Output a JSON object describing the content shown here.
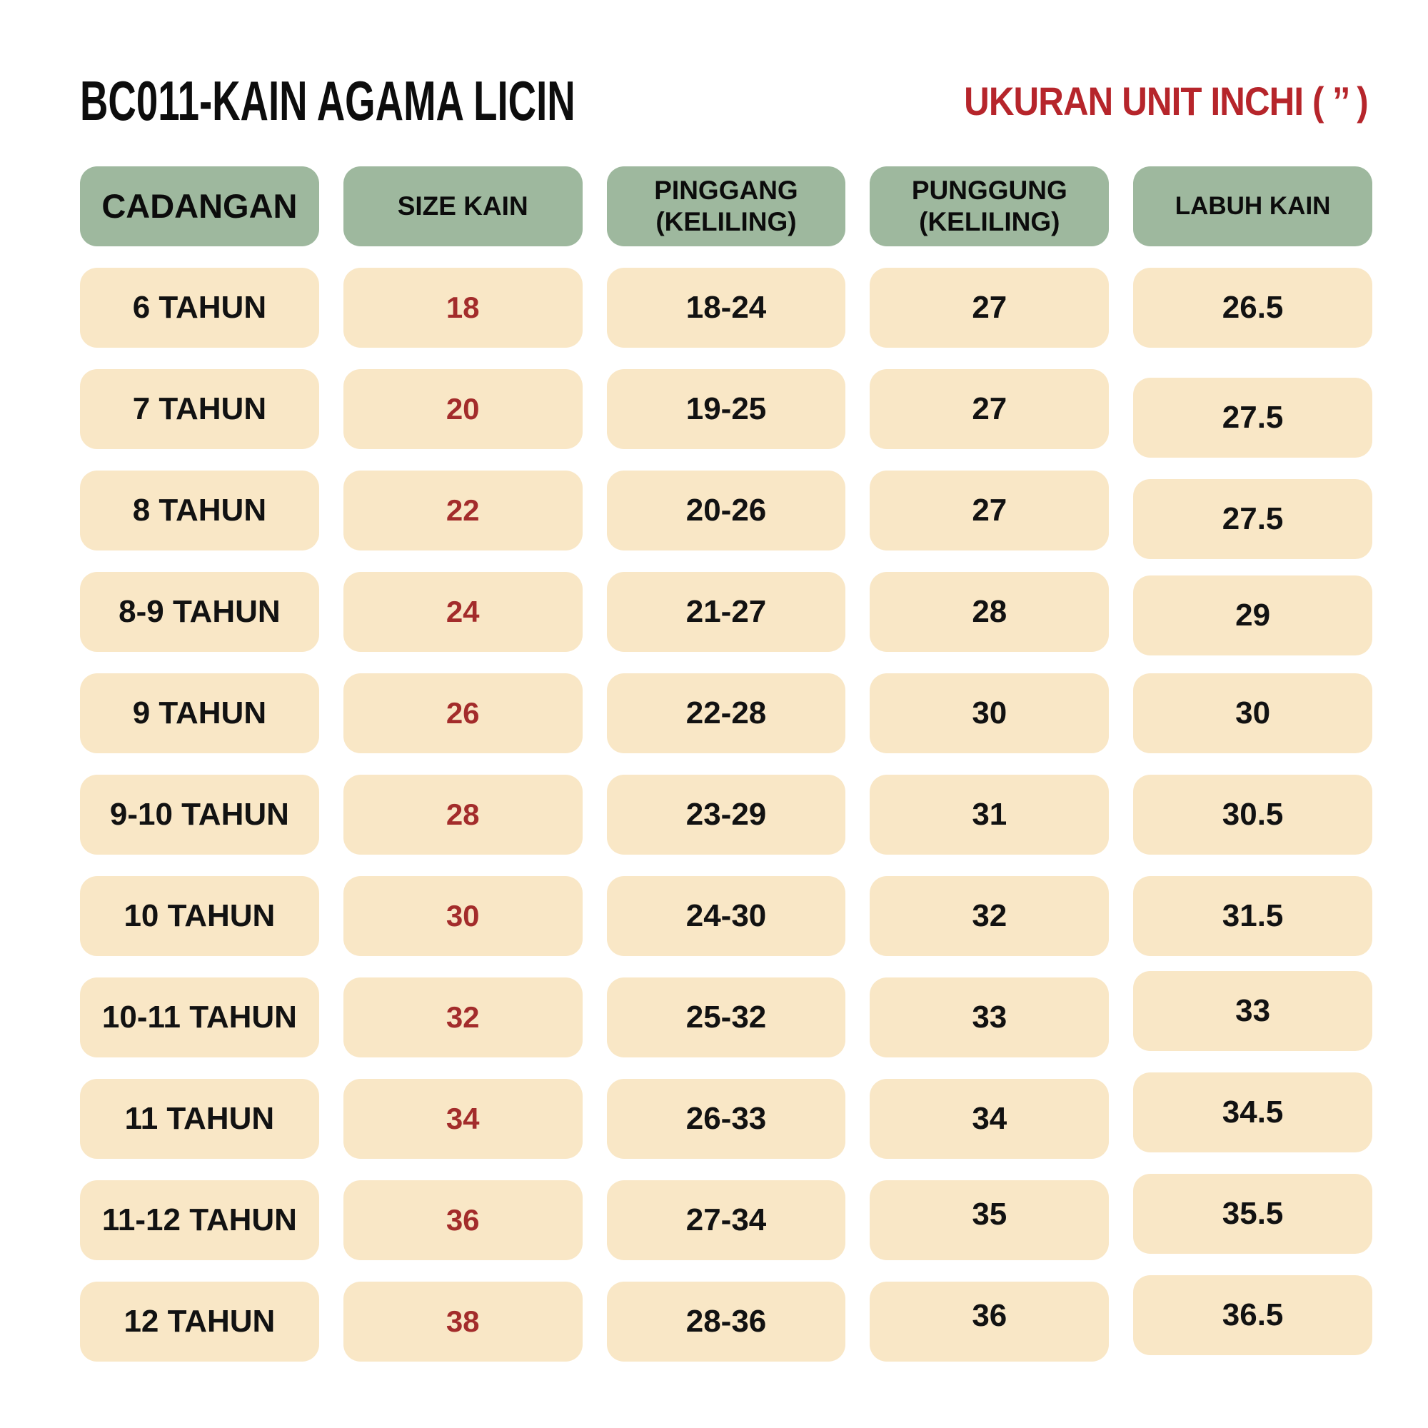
{
  "page": {
    "title": "BC011-KAIN AGAMA LICIN",
    "unit_label": "UKURAN UNIT INCHI ( ’’ )"
  },
  "colors": {
    "header_bg": "#9EB89E",
    "cell_bg": "#F9E7C6",
    "size_value_text": "#A32C2B",
    "unit_label_text": "#B6252B",
    "body_text": "#121212"
  },
  "table": {
    "headers": [
      "CADANGAN",
      "SIZE KAIN",
      "PINGGANG\n(KELILING)",
      "PUNGGUNG\n(KELILING)",
      "LABUH KAIN"
    ],
    "rows": [
      {
        "cadangan": "6 TAHUN",
        "size_kain": "18",
        "pinggang": "18-24",
        "punggung": "27",
        "labuh_kain": "26.5"
      },
      {
        "cadangan": "7 TAHUN",
        "size_kain": "20",
        "pinggang": "19-25",
        "punggung": "27",
        "labuh_kain": "27.5"
      },
      {
        "cadangan": "8 TAHUN",
        "size_kain": "22",
        "pinggang": "20-26",
        "punggung": "27",
        "labuh_kain": "27.5"
      },
      {
        "cadangan": "8-9 TAHUN",
        "size_kain": "24",
        "pinggang": "21-27",
        "punggung": "28",
        "labuh_kain": "29"
      },
      {
        "cadangan": "9 TAHUN",
        "size_kain": "26",
        "pinggang": "22-28",
        "punggung": "30",
        "labuh_kain": "30"
      },
      {
        "cadangan": "9-10 TAHUN",
        "size_kain": "28",
        "pinggang": "23-29",
        "punggung": "31",
        "labuh_kain": "30.5"
      },
      {
        "cadangan": "10 TAHUN",
        "size_kain": "30",
        "pinggang": "24-30",
        "punggung": "32",
        "labuh_kain": "31.5"
      },
      {
        "cadangan": "10-11 TAHUN",
        "size_kain": "32",
        "pinggang": "25-32",
        "punggung": "33",
        "labuh_kain": "33"
      },
      {
        "cadangan": "11 TAHUN",
        "size_kain": "34",
        "pinggang": "26-33",
        "punggung": "34",
        "labuh_kain": "34.5"
      },
      {
        "cadangan": "11-12 TAHUN",
        "size_kain": "36",
        "pinggang": "27-34",
        "punggung": "35",
        "labuh_kain": "35.5"
      },
      {
        "cadangan": "12 TAHUN",
        "size_kain": "38",
        "pinggang": "28-36",
        "punggung": "36",
        "labuh_kain": "36.5"
      }
    ]
  }
}
